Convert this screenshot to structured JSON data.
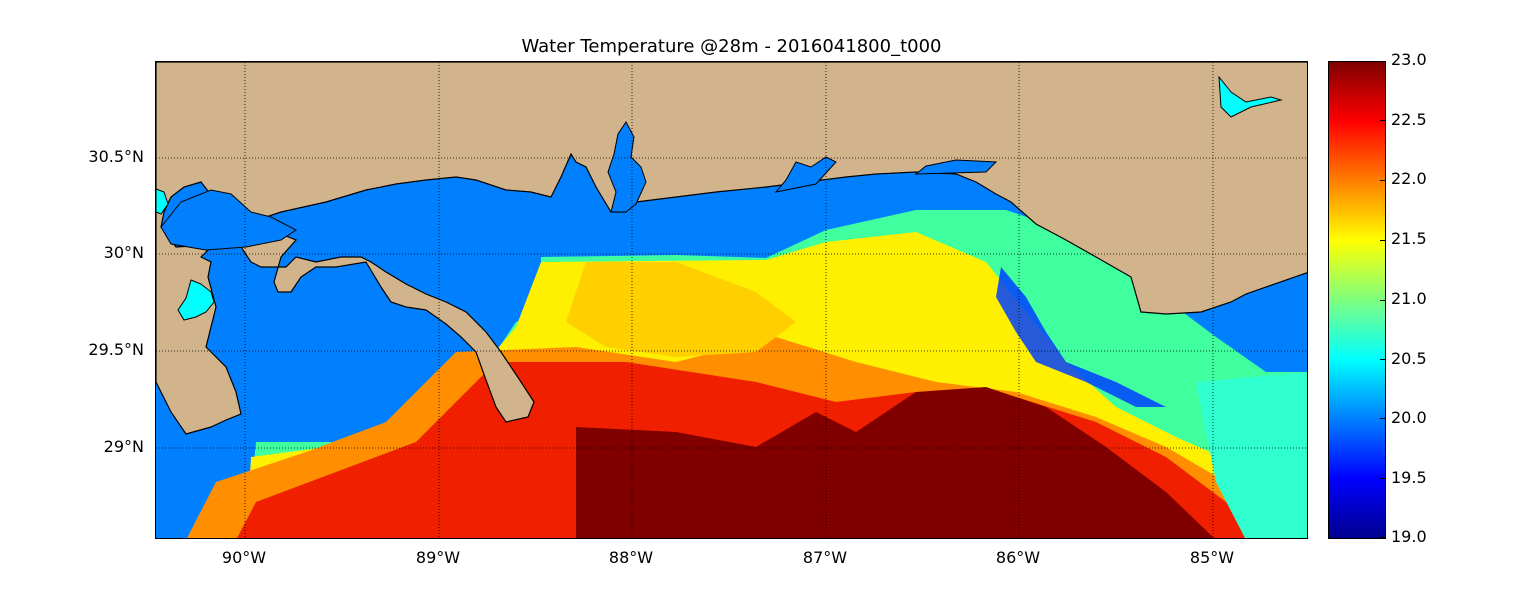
{
  "title": "Water Temperature @28m - 2016041800_t000",
  "map": {
    "lon_range": [
      -90.5,
      -84.5
    ],
    "lat_range": [
      28.55,
      31.0
    ],
    "lat_labels": [
      {
        "lat": 30.5,
        "text": "30.5°N"
      },
      {
        "lat": 30.0,
        "text": "30°N"
      },
      {
        "lat": 29.5,
        "text": "29.5°N"
      },
      {
        "lat": 29.0,
        "text": "29°N"
      }
    ],
    "lon_labels": [
      {
        "lon": -90,
        "text": "90°W"
      },
      {
        "lon": -89,
        "text": "89°W"
      },
      {
        "lon": -88,
        "text": "88°W"
      },
      {
        "lon": -87,
        "text": "87°W"
      },
      {
        "lon": -86,
        "text": "86°W"
      },
      {
        "lon": -85,
        "text": "85°W"
      }
    ],
    "grid_lines": "dotted",
    "colors": {
      "land": "#d2b48c",
      "sea_no_data": "#0080ff",
      "lakes": "#00ffff",
      "coastline": "#000000"
    }
  },
  "colorbar": {
    "colormap": "jet",
    "range": [
      19.0,
      23.0
    ],
    "ticks": [
      "23.0",
      "22.5",
      "22.0",
      "21.5",
      "21.0",
      "20.5",
      "20.0",
      "19.5",
      "19.0"
    ]
  }
}
